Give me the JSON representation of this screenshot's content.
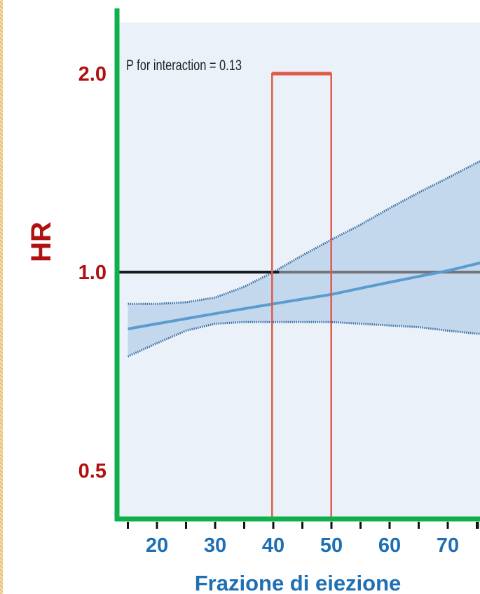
{
  "chart_data": {
    "type": "line",
    "ylabel": "HR",
    "xlabel": "Frazione di eiezione",
    "annotation": "P for interaction = 0.13",
    "x_ticks": [
      20,
      30,
      40,
      50,
      60,
      70
    ],
    "y_ticks": [
      {
        "value": 0.5,
        "label": "0.5"
      },
      {
        "value": 1.0,
        "label": "1.0"
      },
      {
        "value": 2.0,
        "label": "2.0"
      }
    ],
    "xlim": [
      15,
      76
    ],
    "y_scale": "log",
    "series": [
      {
        "estimate": {
          "x": [
            15,
            20,
            25,
            30,
            35,
            40,
            45,
            50,
            55,
            60,
            65,
            70,
            76
          ],
          "y": [
            0.82,
            0.835,
            0.85,
            0.865,
            0.88,
            0.895,
            0.91,
            0.925,
            0.945,
            0.965,
            0.985,
            1.005,
            1.035
          ]
        },
        "upper_ci": {
          "x": [
            15,
            20,
            25,
            30,
            35,
            40,
            45,
            50,
            55,
            60,
            65,
            70,
            76
          ],
          "y": [
            0.895,
            0.895,
            0.9,
            0.915,
            0.95,
            1.0,
            1.06,
            1.12,
            1.18,
            1.25,
            1.32,
            1.39,
            1.48
          ]
        },
        "lower_ci": {
          "x": [
            15,
            20,
            25,
            30,
            35,
            40,
            45,
            50,
            55,
            60,
            65,
            70,
            76
          ],
          "y": [
            0.745,
            0.78,
            0.815,
            0.835,
            0.84,
            0.84,
            0.84,
            0.84,
            0.835,
            0.83,
            0.825,
            0.815,
            0.805
          ]
        }
      }
    ],
    "reference_line": {
      "y": 1.0,
      "color": "#1a1a1a"
    },
    "highlight_region": {
      "x_range": [
        41,
        49
      ],
      "color": "#e05a4a"
    },
    "colors": {
      "axis": "#0db04b",
      "tick_labels_y": "#b01010",
      "ylabel": "#b01010",
      "tick_labels_x": "#1f6fb4",
      "xlabel": "#1f6fb4",
      "band": "#bcd3ea",
      "band_edge": "#3a6ea5",
      "estimate": "#5b9bd0",
      "plot_bg": "#eaf1f9"
    },
    "grid": false
  }
}
